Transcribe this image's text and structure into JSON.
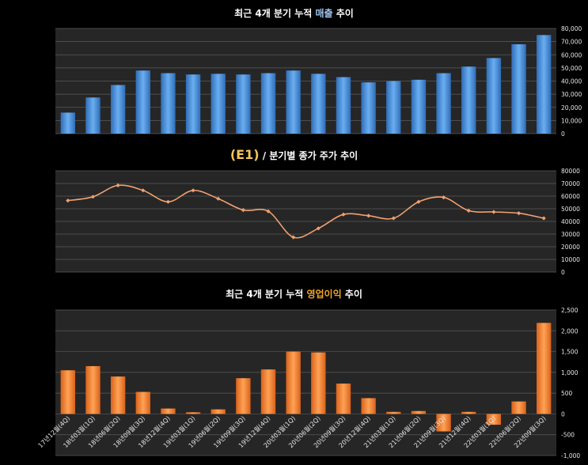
{
  "charts": {
    "sales_title_pre": "최근 4개 분기 누적 ",
    "sales_title_hl": "매출",
    "sales_title_post": " 추이",
    "price_title_code": "(E1)",
    "price_title_rest": " / 분기별 종가 주가 추이",
    "op_title_pre": "최근 4개 분기 누적 ",
    "op_title_hl": "영업이익",
    "op_title_post": " 추이"
  },
  "chart_data": [
    {
      "type": "bar",
      "title": "최근 4개 분기 누적 매출 추이",
      "categories": [
        "17년12월(4Q)",
        "18년03월(1Q)",
        "18년06월(2Q)",
        "18년09월(3Q)",
        "18년12월(4Q)",
        "19년03월(1Q)",
        "19년06월(2Q)",
        "19년09월(3Q)",
        "19년12월(4Q)",
        "20년03월(1Q)",
        "20년06월(2Q)",
        "20년09월(3Q)",
        "20년12월(4Q)",
        "21년03월(1Q)",
        "21년06월(2Q)",
        "21년09월(3Q)",
        "21년12월(4Q)",
        "22년03월(1Q)",
        "22년06월(2Q)",
        "22년09월(3Q)"
      ],
      "values": [
        16000,
        27500,
        37000,
        48000,
        46000,
        45000,
        45500,
        45000,
        46000,
        48000,
        45500,
        43000,
        39000,
        40000,
        41000,
        46000,
        51000,
        57500,
        68000,
        75000
      ],
      "ylim": [
        0,
        80000
      ],
      "yticks": [
        "0",
        "10,000",
        "20,000",
        "30,000",
        "40,000",
        "50,000",
        "60,000",
        "70,000",
        "80,000"
      ],
      "color": "#4a90d9",
      "grid": true
    },
    {
      "type": "line",
      "title": "(E1) / 분기별 종가 주가 추이",
      "categories": [
        "17년12월(4Q)",
        "18년03월(1Q)",
        "18년06월(2Q)",
        "18년09월(3Q)",
        "18년12월(4Q)",
        "19년03월(1Q)",
        "19년06월(2Q)",
        "19년09월(3Q)",
        "19년12월(4Q)",
        "20년03월(1Q)",
        "20년06월(2Q)",
        "20년09월(3Q)",
        "20년12월(4Q)",
        "21년03월(1Q)",
        "21년06월(2Q)",
        "21년09월(3Q)",
        "21년12월(4Q)",
        "22년03월(1Q)",
        "22년06월(2Q)",
        "22년09월(3Q)"
      ],
      "values": [
        56500,
        59500,
        68500,
        64500,
        55500,
        64500,
        58000,
        49000,
        48000,
        27500,
        34500,
        45500,
        44500,
        42500,
        55500,
        59000,
        48500,
        47500,
        46500,
        42500
      ],
      "ylim": [
        0,
        80000
      ],
      "yticks": [
        "0",
        "10000",
        "20000",
        "30000",
        "40000",
        "50000",
        "60000",
        "70000",
        "80000"
      ],
      "color": "#f0a070",
      "grid": true
    },
    {
      "type": "bar",
      "title": "최근 4개 분기 누적 영업이익 추이",
      "categories": [
        "17년12월(4Q)",
        "18년03월(1Q)",
        "18년06월(2Q)",
        "18년09월(3Q)",
        "18년12월(4Q)",
        "19년03월(1Q)",
        "19년06월(2Q)",
        "19년09월(3Q)",
        "19년12월(4Q)",
        "20년03월(1Q)",
        "20년06월(2Q)",
        "20년09월(3Q)",
        "20년12월(4Q)",
        "21년03월(1Q)",
        "21년06월(2Q)",
        "21년09월(3Q)",
        "21년12월(4Q)",
        "22년03월(1Q)",
        "22년06월(2Q)",
        "22년09월(3Q)"
      ],
      "values": [
        1050,
        1150,
        900,
        530,
        130,
        40,
        110,
        860,
        1070,
        1500,
        1480,
        730,
        380,
        50,
        70,
        -420,
        50,
        -260,
        300,
        2190
      ],
      "ylim": [
        -1000,
        2500
      ],
      "yticks": [
        "-1,000",
        "-500",
        "0",
        "500",
        "1,000",
        "1,500",
        "2,000",
        "2,500"
      ],
      "color": "#f07f2a",
      "grid": true
    }
  ]
}
